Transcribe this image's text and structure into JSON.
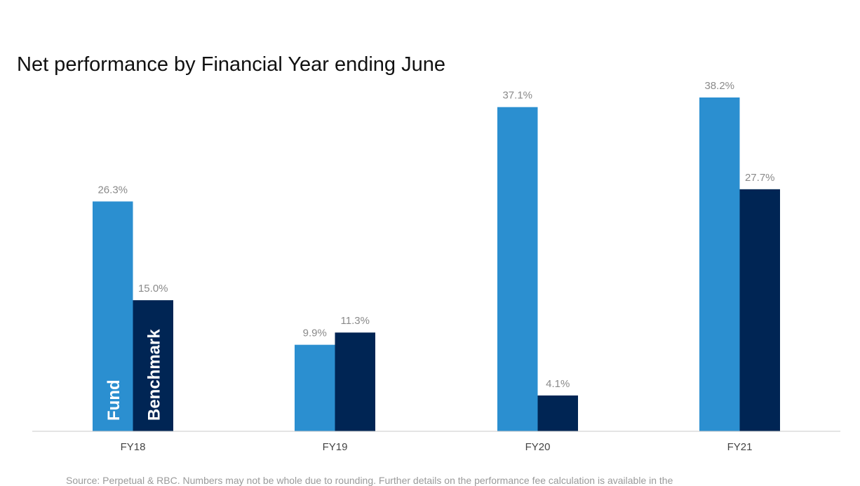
{
  "chart_data": {
    "type": "bar",
    "title": "Net performance by Financial Year ending June",
    "categories": [
      "FY18",
      "FY19",
      "FY20",
      "FY21"
    ],
    "series": [
      {
        "name": "Fund",
        "color": "#2b8fd0",
        "values": [
          26.3,
          9.9,
          37.1,
          38.2
        ],
        "labels": [
          "26.3%",
          "9.9%",
          "37.1%",
          "38.2%"
        ]
      },
      {
        "name": "Benchmark",
        "color": "#002554",
        "values": [
          15.0,
          11.3,
          4.1,
          27.7
        ],
        "labels": [
          "15.0%",
          "11.3%",
          "4.1%",
          "27.7%"
        ]
      }
    ],
    "xlabel": "",
    "ylabel": "",
    "ylim": [
      0,
      38.2
    ],
    "grid": false,
    "legend": "inside-first-bars-vertical"
  },
  "source_note": "Source: Perpetual & RBC. Numbers may not be whole due to rounding. Further details on the performance fee calculation is available in the"
}
